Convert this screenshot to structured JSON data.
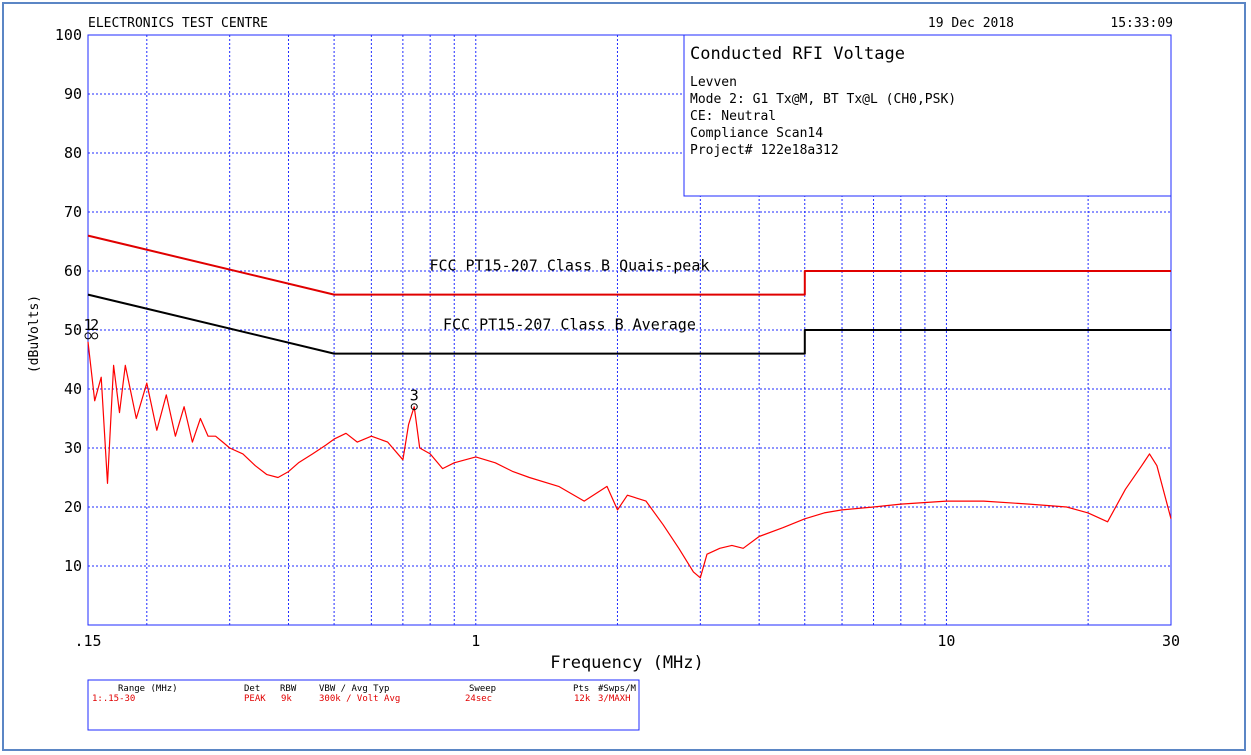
{
  "header": {
    "lab_name": "ELECTRONICS TEST CENTRE",
    "date": "19 Dec 2018",
    "time": "15:33:09"
  },
  "info_box": {
    "title": "Conducted RFI Voltage",
    "lines": [
      "Levven",
      "Mode 2: G1 Tx@M, BT Tx@L (CH0,PSK)",
      "CE: Neutral",
      "Compliance Scan14",
      "Project# 122e18a312"
    ]
  },
  "footer_table": {
    "headers": [
      "Range (MHz)",
      "Det",
      "RBW",
      "VBW / Avg Typ",
      "Sweep",
      "Pts",
      "#Swps/M"
    ],
    "row": [
      "1:.15-30",
      "PEAK",
      "9k",
      "300k / Volt Avg",
      "24sec",
      "12k",
      "3/MAXH"
    ]
  },
  "colors": {
    "grid": "#1f2bff",
    "trace": "#ff0000",
    "limit_qp": "#e00000",
    "limit_avg": "#000000",
    "frame": "#5b86c5"
  },
  "chart_data": {
    "type": "line",
    "title": "",
    "xlabel": "Frequency (MHz)",
    "ylabel": "(dBuVolts)",
    "x_scale": "log",
    "xlim": [
      0.15,
      30
    ],
    "ylim": [
      0,
      100
    ],
    "x_tick_labels": [
      ".15",
      "1",
      "10",
      "30"
    ],
    "y_tick_labels": [
      "10",
      "20",
      "30",
      "40",
      "50",
      "60",
      "70",
      "80",
      "90",
      "100"
    ],
    "grid": true,
    "series": [
      {
        "name": "FCC PT15-207 Class B Quais-peak",
        "x": [
          0.15,
          0.5,
          0.5,
          5,
          5,
          30
        ],
        "y": [
          66,
          56,
          56,
          56,
          60,
          60
        ]
      },
      {
        "name": "FCC PT15-207 Class B Average",
        "x": [
          0.15,
          0.5,
          0.5,
          5,
          5,
          30
        ],
        "y": [
          56,
          46,
          46,
          46,
          50,
          50
        ]
      },
      {
        "name": "",
        "x": [
          0.15,
          0.155,
          0.16,
          0.165,
          0.17,
          0.175,
          0.18,
          0.19,
          0.2,
          0.21,
          0.22,
          0.23,
          0.24,
          0.25,
          0.26,
          0.27,
          0.28,
          0.29,
          0.3,
          0.32,
          0.34,
          0.36,
          0.38,
          0.4,
          0.42,
          0.45,
          0.48,
          0.5,
          0.53,
          0.56,
          0.6,
          0.65,
          0.7,
          0.72,
          0.74,
          0.76,
          0.8,
          0.85,
          0.9,
          1.0,
          1.1,
          1.2,
          1.3,
          1.5,
          1.7,
          1.9,
          2.0,
          2.1,
          2.3,
          2.5,
          2.7,
          2.9,
          3.0,
          3.1,
          3.3,
          3.5,
          3.7,
          4.0,
          4.5,
          5.0,
          5.5,
          6.0,
          7.0,
          8.0,
          10.0,
          12.0,
          15.0,
          18.0,
          20.0,
          22.0,
          24.0,
          26.0,
          27.0,
          28.0,
          30.0
        ],
        "y": [
          48,
          38,
          42,
          24,
          44,
          36,
          44,
          35,
          41,
          33,
          39,
          32,
          37,
          31,
          35,
          32,
          32,
          31,
          30,
          29,
          27,
          25.5,
          25,
          26,
          27.5,
          29,
          30.5,
          31.5,
          32.5,
          31,
          32,
          31,
          28,
          34,
          37,
          30,
          29,
          26.5,
          27.5,
          28.5,
          27.5,
          26,
          25,
          23.5,
          21,
          23.5,
          19.5,
          22,
          21,
          17,
          13,
          9,
          8,
          12,
          13,
          13.5,
          13,
          15,
          16.5,
          18,
          19,
          19.5,
          20,
          20.5,
          21,
          21,
          20.5,
          20,
          19,
          17.5,
          23,
          27,
          29,
          27,
          18
        ]
      }
    ],
    "markers": [
      {
        "label": "1",
        "x": 0.15,
        "y": 49
      },
      {
        "label": "2",
        "x": 0.155,
        "y": 49
      },
      {
        "label": "3",
        "x": 0.74,
        "y": 37
      }
    ]
  }
}
